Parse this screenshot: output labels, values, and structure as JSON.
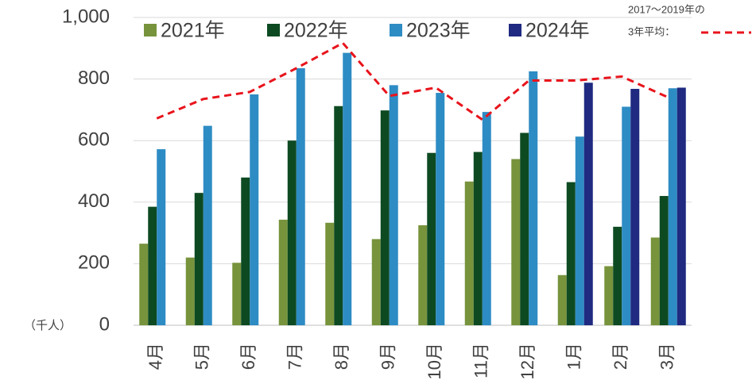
{
  "chart_data": {
    "type": "bar",
    "unit_label": "（千人）",
    "categories": [
      "4月",
      "5月",
      "6月",
      "7月",
      "8月",
      "9月",
      "10月",
      "11月",
      "12月",
      "1月",
      "2月",
      "3月"
    ],
    "series": [
      {
        "name": "2021年",
        "color": "#77933c",
        "values": [
          265,
          220,
          203,
          343,
          333,
          280,
          325,
          467,
          540,
          163,
          192,
          285
        ]
      },
      {
        "name": "2022年",
        "color": "#0d4a22",
        "values": [
          385,
          430,
          480,
          600,
          712,
          698,
          560,
          563,
          625,
          465,
          320,
          420
        ]
      },
      {
        "name": "2023年",
        "color": "#2e8cc4",
        "values": [
          572,
          648,
          750,
          835,
          885,
          780,
          755,
          693,
          825,
          613,
          710,
          770
        ]
      },
      {
        "name": "2024年",
        "color": "#1f2a80",
        "values": [
          null,
          null,
          null,
          null,
          null,
          null,
          null,
          null,
          null,
          788,
          768,
          772
        ]
      },
      {
        "name": [
          "2017～2019年の",
          "3年平均："
        ],
        "type": "line",
        "color": "#e8141c",
        "dashed": true,
        "values": [
          672,
          735,
          758,
          835,
          917,
          745,
          772,
          668,
          795,
          795,
          808,
          740
        ]
      }
    ],
    "ylim": [
      0,
      1000
    ],
    "yticks": [
      0,
      200,
      400,
      600,
      800,
      {
        "value": 1000,
        "label": "1,000"
      }
    ],
    "grid": true,
    "legend": "top"
  }
}
